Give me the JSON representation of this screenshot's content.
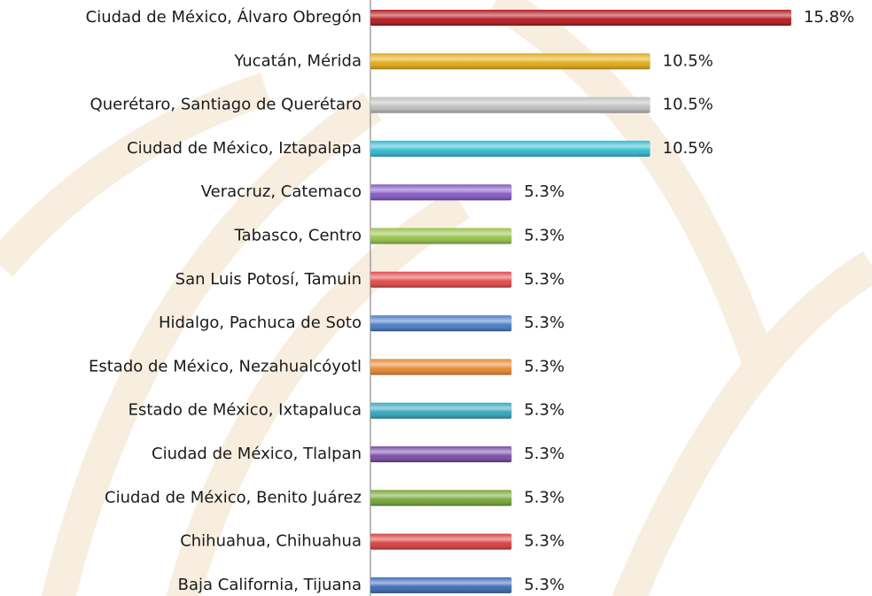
{
  "chart_data": {
    "type": "bar",
    "orientation": "horizontal",
    "categories": [
      "Ciudad de México, Álvaro Obregón",
      "Yucatán, Mérida",
      "Querétaro, Santiago de Querétaro",
      "Ciudad de México, Iztapalapa",
      "Veracruz, Catemaco",
      "Tabasco, Centro",
      "San Luis Potosí, Tamuin",
      "Hidalgo, Pachuca de Soto",
      "Estado de México, Nezahualcóyotl",
      "Estado de México, Ixtapaluca",
      "Ciudad de México, Tlalpan",
      "Ciudad de México, Benito Juárez",
      "Chihuahua, Chihuahua",
      "Baja California, Tijuana"
    ],
    "values": [
      15.8,
      10.5,
      10.5,
      10.5,
      5.3,
      5.3,
      5.3,
      5.3,
      5.3,
      5.3,
      5.3,
      5.3,
      5.3,
      5.3
    ],
    "value_labels": [
      "15.8%",
      "10.5%",
      "10.5%",
      "10.5%",
      "5.3%",
      "5.3%",
      "5.3%",
      "5.3%",
      "5.3%",
      "5.3%",
      "5.3%",
      "5.3%",
      "5.3%",
      "5.3%"
    ],
    "colors": [
      "#b0141a",
      "#e0a810",
      "#bdbdbd",
      "#2fb8d0",
      "#8055c4",
      "#92c045",
      "#e04545",
      "#4577c4",
      "#e5862a",
      "#2fa3ba",
      "#7548a6",
      "#74a433",
      "#d63a3a",
      "#3a66b4"
    ]
  }
}
